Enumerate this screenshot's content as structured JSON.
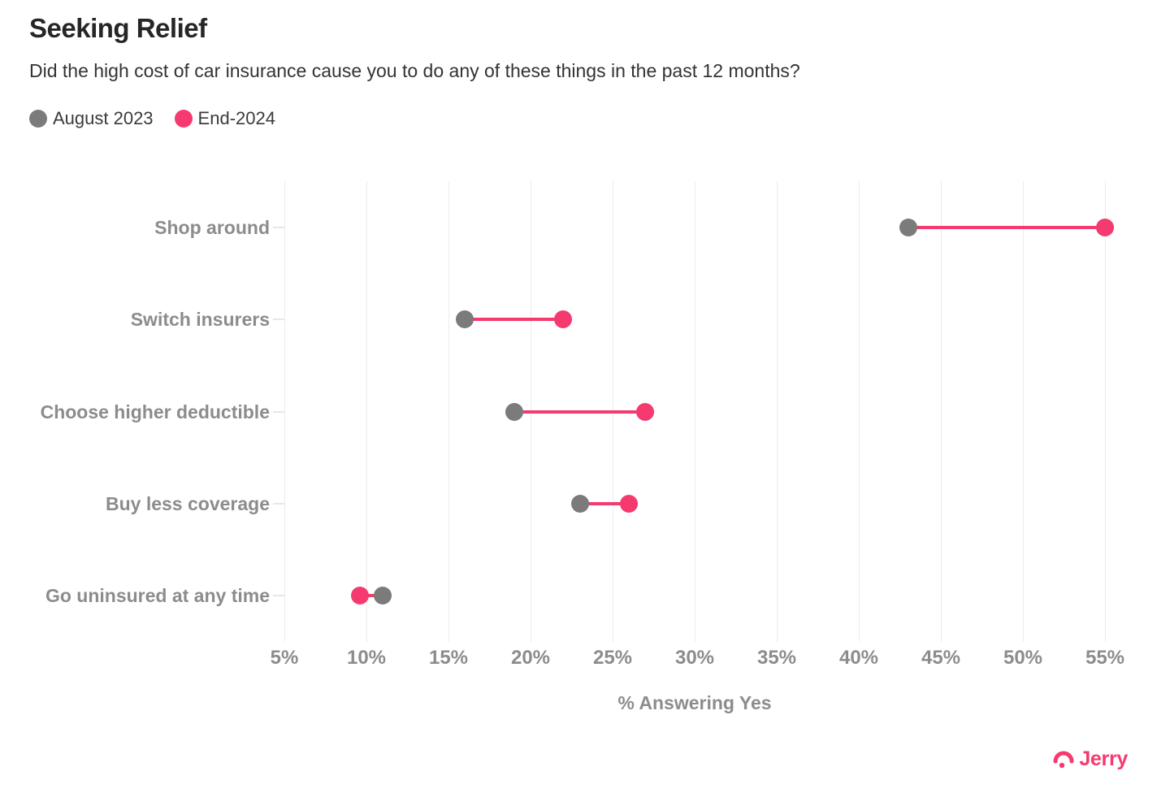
{
  "header": {
    "title": "Seeking Relief",
    "subtitle": "Did the high cost of car insurance cause you to do any of these things in the past 12 months?"
  },
  "chart_data": {
    "type": "dumbbell",
    "title": "Seeking Relief",
    "subtitle": "Did the high cost of car insurance cause you to do any of these things in the past 12 months?",
    "categories": [
      "Shop around",
      "Switch insurers",
      "Choose higher deductible",
      "Buy less coverage",
      "Go uninsured at any time"
    ],
    "series": [
      {
        "name": "August 2023",
        "color": "#7b7b7b",
        "values": [
          43,
          16,
          19,
          23,
          11
        ]
      },
      {
        "name": "End-2024",
        "color": "#f43a6e",
        "values": [
          55,
          22,
          27,
          26,
          9.6
        ]
      }
    ],
    "connector_color": "#f43a6e",
    "xlabel": "% Answering Yes",
    "xlim": [
      5,
      55
    ],
    "x_ticks": [
      {
        "v": 5,
        "label": "5%"
      },
      {
        "v": 10,
        "label": "10%"
      },
      {
        "v": 15,
        "label": "15%"
      },
      {
        "v": 20,
        "label": "20%"
      },
      {
        "v": 25,
        "label": "25%"
      },
      {
        "v": 30,
        "label": "30%"
      },
      {
        "v": 35,
        "label": "35%"
      },
      {
        "v": 40,
        "label": "40%"
      },
      {
        "v": 45,
        "label": "45%"
      },
      {
        "v": 50,
        "label": "50%"
      },
      {
        "v": 55,
        "label": "55%"
      }
    ],
    "grid": "vertical",
    "legend_position": "top-left"
  },
  "footer": {
    "brand": "Jerry"
  },
  "colors": {
    "accent_pink": "#f43a6e",
    "neutral_gray": "#7b7b7b",
    "axis_text": "#8c8c8c",
    "gridline": "#ececec"
  }
}
